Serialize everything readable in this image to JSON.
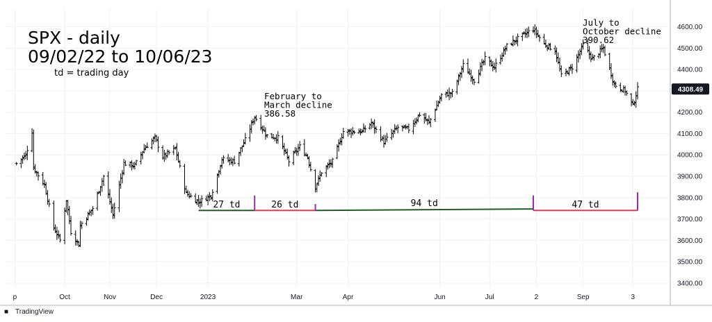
{
  "chart_data": {
    "type": "ohlc",
    "title": "SPX - daily",
    "subtitle": "09/02/22 to 10/06/23",
    "note": "td = trading day",
    "ylim": [
      3380,
      4680
    ],
    "y_ticks": [
      3400,
      3500,
      3600,
      3700,
      3800,
      3900,
      4000,
      4100,
      4200,
      4300,
      4400,
      4500,
      4600
    ],
    "y_tick_labels": [
      "3400.00",
      "3500.00",
      "3600.00",
      "3700.00",
      "3800.00",
      "3900.00",
      "4000.00",
      "4100.00",
      "4200.00",
      "4300.00",
      "4400.00",
      "4500.00",
      "4600.00"
    ],
    "x_range": [
      "2022-08-26",
      "2023-10-27"
    ],
    "x_ticks": [
      {
        "date": "2022-09-01",
        "label": "p"
      },
      {
        "date": "2022-10-03",
        "label": "Oct"
      },
      {
        "date": "2022-11-01",
        "label": "Nov"
      },
      {
        "date": "2022-12-01",
        "label": "Dec"
      },
      {
        "date": "2023-01-03",
        "label": "2023"
      },
      {
        "date": "2023-03-01",
        "label": "Mar"
      },
      {
        "date": "2023-04-03",
        "label": "Apr"
      },
      {
        "date": "2023-06-01",
        "label": "Jun"
      },
      {
        "date": "2023-07-03",
        "label": "Jul"
      },
      {
        "date": "2023-08-02",
        "label": "2"
      },
      {
        "date": "2023-09-01",
        "label": "Sep"
      },
      {
        "date": "2023-10-03",
        "label": "3"
      }
    ],
    "last_price": 4308.49,
    "last_price_label": "4308.49",
    "price_path": [
      [
        "2022-09-02",
        3960
      ],
      [
        "2022-09-08",
        4000
      ],
      [
        "2022-09-12",
        4110
      ],
      [
        "2022-09-13",
        3940
      ],
      [
        "2022-09-20",
        3860
      ],
      [
        "2022-09-26",
        3660
      ],
      [
        "2022-09-30",
        3600
      ],
      [
        "2022-10-04",
        3790
      ],
      [
        "2022-10-07",
        3640
      ],
      [
        "2022-10-12",
        3580
      ],
      [
        "2022-10-13",
        3670
      ],
      [
        "2022-10-18",
        3720
      ],
      [
        "2022-10-21",
        3750
      ],
      [
        "2022-10-28",
        3900
      ],
      [
        "2022-11-03",
        3720
      ],
      [
        "2022-11-10",
        3960
      ],
      [
        "2022-11-17",
        3950
      ],
      [
        "2022-11-23",
        4030
      ],
      [
        "2022-11-30",
        4080
      ],
      [
        "2022-12-05",
        3990
      ],
      [
        "2022-12-13",
        4030
      ],
      [
        "2022-12-20",
        3820
      ],
      [
        "2022-12-28",
        3780
      ],
      [
        "2023-01-05",
        3810
      ],
      [
        "2023-01-12",
        3980
      ],
      [
        "2023-01-20",
        3970
      ],
      [
        "2023-01-27",
        4070
      ],
      [
        "2023-02-02",
        4180
      ],
      [
        "2023-02-10",
        4090
      ],
      [
        "2023-02-17",
        4080
      ],
      [
        "2023-02-24",
        3970
      ],
      [
        "2023-03-03",
        4040
      ],
      [
        "2023-03-08",
        3990
      ],
      [
        "2023-03-13",
        3850
      ],
      [
        "2023-03-17",
        3920
      ],
      [
        "2023-03-24",
        3970
      ],
      [
        "2023-03-31",
        4110
      ],
      [
        "2023-04-12",
        4110
      ],
      [
        "2023-04-18",
        4150
      ],
      [
        "2023-04-26",
        4060
      ],
      [
        "2023-05-05",
        4130
      ],
      [
        "2023-05-12",
        4120
      ],
      [
        "2023-05-19",
        4190
      ],
      [
        "2023-05-25",
        4150
      ],
      [
        "2023-06-02",
        4280
      ],
      [
        "2023-06-09",
        4290
      ],
      [
        "2023-06-16",
        4420
      ],
      [
        "2023-06-23",
        4350
      ],
      [
        "2023-06-30",
        4450
      ],
      [
        "2023-07-06",
        4410
      ],
      [
        "2023-07-14",
        4510
      ],
      [
        "2023-07-20",
        4540
      ],
      [
        "2023-07-31",
        4590
      ],
      [
        "2023-08-07",
        4520
      ],
      [
        "2023-08-14",
        4490
      ],
      [
        "2023-08-18",
        4370
      ],
      [
        "2023-08-25",
        4410
      ],
      [
        "2023-09-01",
        4515
      ],
      [
        "2023-09-07",
        4450
      ],
      [
        "2023-09-14",
        4500
      ],
      [
        "2023-09-21",
        4330
      ],
      [
        "2023-09-28",
        4300
      ],
      [
        "2023-10-03",
        4230
      ],
      [
        "2023-10-06",
        4308
      ]
    ],
    "annotations": [
      {
        "id": "feb-mar",
        "lines": [
          "February to",
          "March decline",
          "386.58"
        ]
      },
      {
        "id": "jul-oct",
        "lines": [
          "July to",
          "October decline",
          "390.62"
        ]
      }
    ],
    "td_segments": [
      {
        "label": "27 td",
        "start": "2022-12-28",
        "end": "2023-02-02",
        "color": "#1b5e20",
        "y": 3740
      },
      {
        "label": "26 td",
        "start": "2023-02-02",
        "end": "2023-03-13",
        "color": "#e53950",
        "y": 3740
      },
      {
        "label": "94 td",
        "start": "2023-03-13",
        "end": "2023-07-31",
        "color": "#1b5e20",
        "y_start": 3740,
        "y_end": 3747
      },
      {
        "label": "47 td",
        "start": "2023-07-31",
        "end": "2023-10-06",
        "color": "#e53950",
        "y": 3740
      }
    ],
    "td_markers": [
      {
        "date": "2023-02-02",
        "y_top": 3810,
        "color": "#9c27b0"
      },
      {
        "date": "2023-03-13",
        "y_top": 3770,
        "color": "#9c27b0"
      },
      {
        "date": "2023-07-31",
        "y_top": 3810,
        "color": "#9c27b0"
      },
      {
        "date": "2023-10-06",
        "y_top": 3825,
        "color": "#9c27b0"
      }
    ],
    "colors": {
      "bars": "#000000",
      "grid": "#eef0f3",
      "axis": "#131722"
    },
    "grid": true
  },
  "branding": {
    "logo_text": "TradingView"
  }
}
